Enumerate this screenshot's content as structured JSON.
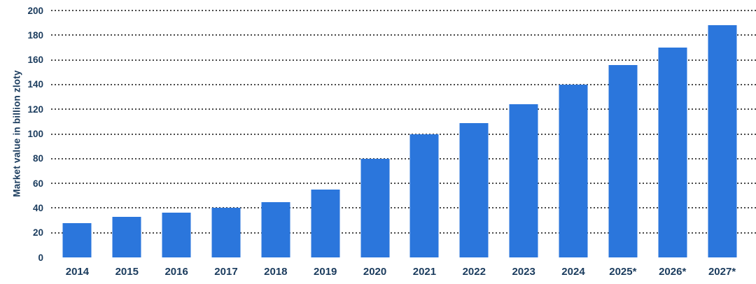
{
  "chart_data": {
    "type": "bar",
    "categories": [
      "2014",
      "2015",
      "2016",
      "2017",
      "2018",
      "2019",
      "2020",
      "2021",
      "2022",
      "2023",
      "2024",
      "2025*",
      "2026*",
      "2027*"
    ],
    "values": [
      28,
      33,
      36,
      40,
      45,
      55,
      80,
      100,
      109,
      124,
      140,
      156,
      170,
      188
    ],
    "ylabel": "Market value in billion zloty",
    "xlabel": "",
    "ylim": [
      0,
      200
    ],
    "yticks": [
      0,
      20,
      40,
      60,
      80,
      100,
      120,
      140,
      160,
      180,
      200
    ],
    "grid": "horizontal-dotted",
    "legend": "none",
    "colors": {
      "bar": "#2b76dc",
      "axis_label": "#1a3b5d",
      "gridline": "#4a4a4a",
      "background": "#ffffff"
    }
  }
}
